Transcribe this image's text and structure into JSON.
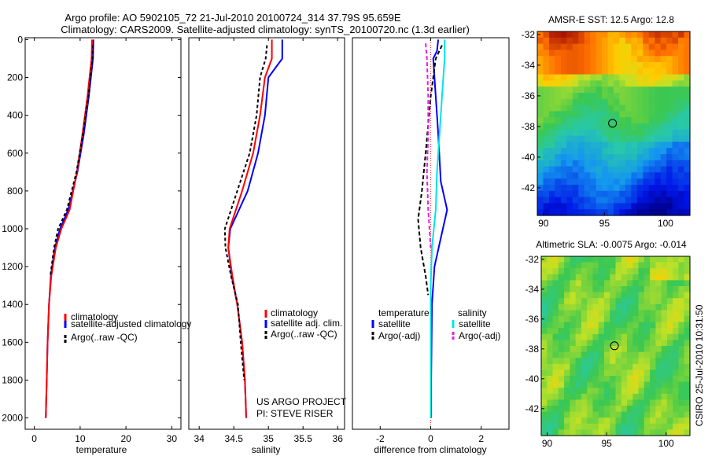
{
  "figure": {
    "title_line1": "Argo profile: AO 5902105_72 21-Jul-2010 20100724_314 37.79S 95.659E",
    "title_line2": "Climatology: CARS2009. Satellite-adjusted climatology: synTS_20100720.nc (1.3d earlier)",
    "project_line1": "US ARGO PROJECT",
    "project_line2": "PI: STEVE RISER",
    "side_label": "CSIRO 25-Jul-2010 10:31:50"
  },
  "colors": {
    "climatology": "#ff0000",
    "satellite": "#0000ff",
    "argo": "#000000",
    "cyan": "#00e5e5",
    "magenta": "#e51ee5"
  },
  "chart_data": [
    {
      "id": "temperature",
      "type": "line",
      "xlabel": "temperature",
      "ylabel": "",
      "xlim": [
        -2,
        32
      ],
      "ylim": [
        2060,
        -10
      ],
      "xticks": [
        0,
        10,
        20,
        30
      ],
      "xtick_labels": [
        "0",
        "10",
        "20",
        "30"
      ],
      "yticks": [
        0,
        200,
        400,
        600,
        800,
        1000,
        1200,
        1400,
        1600,
        1800,
        2000
      ],
      "ytick_labels": [
        "0",
        "200",
        "400",
        "600",
        "800",
        "1000",
        "1200",
        "1400",
        "1600",
        "1800",
        "2000"
      ],
      "legend": [
        "climatology",
        "satellite-adjusted climatology",
        "Argo(..raw -QC)"
      ],
      "series": [
        {
          "name": "satellite-adjusted climatology",
          "color": "#0000ff",
          "width": 2,
          "points": [
            [
              12.9,
              0
            ],
            [
              12.8,
              100
            ],
            [
              11.9,
              300
            ],
            [
              10.8,
              500
            ],
            [
              9.4,
              700
            ],
            [
              7.4,
              900
            ],
            [
              5.6,
              1000
            ],
            [
              4.5,
              1100
            ],
            [
              3.6,
              1250
            ],
            [
              3.2,
              1400
            ],
            [
              2.9,
              1600
            ],
            [
              2.7,
              1800
            ],
            [
              2.5,
              2000
            ]
          ]
        },
        {
          "name": "climatology",
          "color": "#ff0000",
          "width": 2,
          "points": [
            [
              12.6,
              0
            ],
            [
              12.5,
              100
            ],
            [
              11.6,
              300
            ],
            [
              10.5,
              500
            ],
            [
              9.3,
              700
            ],
            [
              7.7,
              900
            ],
            [
              5.9,
              1000
            ],
            [
              4.7,
              1100
            ],
            [
              3.7,
              1250
            ],
            [
              3.2,
              1400
            ],
            [
              2.9,
              1600
            ],
            [
              2.7,
              1800
            ],
            [
              2.5,
              2000
            ]
          ]
        },
        {
          "name": "Argo(..raw -QC)",
          "color": "#000000",
          "width": 2,
          "dash": "4 3",
          "points": [
            [
              12.8,
              30
            ],
            [
              12.7,
              100
            ],
            [
              11.8,
              300
            ],
            [
              10.6,
              500
            ],
            [
              9.2,
              700
            ],
            [
              7.1,
              900
            ],
            [
              5.2,
              1000
            ],
            [
              4.3,
              1100
            ],
            [
              3.5,
              1250
            ]
          ]
        }
      ]
    },
    {
      "id": "salinity",
      "type": "line",
      "xlabel": "salinity",
      "ylabel": "",
      "xlim": [
        33.85,
        36.1
      ],
      "ylim": [
        2060,
        -10
      ],
      "xticks": [
        34,
        34.5,
        35,
        35.5,
        36
      ],
      "xtick_labels": [
        "34",
        "34.5",
        "35",
        "35.5",
        "36"
      ],
      "yticks": [],
      "ytick_labels": [],
      "legend": [
        "climatology",
        "satellite adj. clim.",
        "Argo(..raw -QC)"
      ],
      "series": [
        {
          "name": "satellite adj. clim.",
          "color": "#0000ff",
          "width": 2,
          "points": [
            [
              35.2,
              0
            ],
            [
              35.2,
              100
            ],
            [
              35.0,
              200
            ],
            [
              34.95,
              400
            ],
            [
              34.85,
              600
            ],
            [
              34.7,
              800
            ],
            [
              34.45,
              1000
            ],
            [
              34.42,
              1100
            ],
            [
              34.47,
              1250
            ],
            [
              34.55,
              1400
            ],
            [
              34.62,
              1600
            ],
            [
              34.66,
              1800
            ],
            [
              34.68,
              2000
            ]
          ]
        },
        {
          "name": "climatology",
          "color": "#ff0000",
          "width": 2,
          "points": [
            [
              35.05,
              0
            ],
            [
              35.05,
              100
            ],
            [
              34.95,
              200
            ],
            [
              34.88,
              400
            ],
            [
              34.78,
              600
            ],
            [
              34.62,
              800
            ],
            [
              34.44,
              1000
            ],
            [
              34.42,
              1100
            ],
            [
              34.48,
              1250
            ],
            [
              34.55,
              1400
            ],
            [
              34.62,
              1600
            ],
            [
              34.66,
              1800
            ],
            [
              34.68,
              2000
            ]
          ]
        },
        {
          "name": "Argo(..raw -QC)",
          "color": "#000000",
          "width": 2,
          "dash": "4 3",
          "points": [
            [
              34.98,
              30
            ],
            [
              34.96,
              100
            ],
            [
              34.88,
              200
            ],
            [
              34.83,
              400
            ],
            [
              34.73,
              600
            ],
            [
              34.55,
              800
            ],
            [
              34.37,
              1000
            ],
            [
              34.38,
              1100
            ],
            [
              34.46,
              1250
            ],
            [
              34.56,
              1400
            ],
            [
              34.6,
              1600
            ],
            [
              34.65,
              1800
            ]
          ]
        }
      ]
    },
    {
      "id": "difference",
      "type": "line",
      "xlabel": "difference from climatology",
      "ylabel": "",
      "xlim": [
        -3.1,
        3.1
      ],
      "ylim": [
        2060,
        -10
      ],
      "xticks": [
        -2,
        0,
        2
      ],
      "xtick_labels": [
        "-2",
        "0",
        "2"
      ],
      "yticks": [],
      "ytick_labels": [],
      "legend_headers": [
        "temperature",
        "salinity"
      ],
      "legend": [
        "satellite",
        "Argo(-adj)",
        "satellite",
        "Argo(-adj)"
      ],
      "series": [
        {
          "name": "temperature satellite",
          "color": "#0000ff",
          "width": 2,
          "points": [
            [
              0.3,
              0
            ],
            [
              0.25,
              60
            ],
            [
              0.1,
              100
            ],
            [
              0.2,
              300
            ],
            [
              0.3,
              500
            ],
            [
              0.4,
              750
            ],
            [
              0.65,
              900
            ],
            [
              0.4,
              1050
            ],
            [
              0.15,
              1200
            ],
            [
              0.05,
              1400
            ],
            [
              0.02,
              1800
            ],
            [
              0.02,
              2000
            ]
          ]
        },
        {
          "name": "salinity satellite",
          "color": "#00e5e5",
          "width": 2,
          "points": [
            [
              0.55,
              0
            ],
            [
              0.55,
              100
            ],
            [
              0.45,
              300
            ],
            [
              0.35,
              500
            ],
            [
              0.25,
              700
            ],
            [
              0.2,
              900
            ],
            [
              0.05,
              1100
            ],
            [
              0.0,
              1300
            ],
            [
              0.0,
              2000
            ]
          ]
        },
        {
          "name": "temperature Argo(-adj)",
          "color": "#000000",
          "width": 2,
          "dash": "5 3",
          "points": [
            [
              0.45,
              30
            ],
            [
              0.2,
              100
            ],
            [
              0.0,
              300
            ],
            [
              -0.2,
              600
            ],
            [
              -0.35,
              800
            ],
            [
              -0.5,
              950
            ],
            [
              -0.4,
              1100
            ],
            [
              -0.2,
              1250
            ],
            [
              -0.1,
              1350
            ]
          ]
        },
        {
          "name": "salinity Argo(-adj)",
          "color": "#e51ee5",
          "width": 2,
          "dash": "5 3",
          "points": [
            [
              -0.2,
              20
            ],
            [
              -0.15,
              100
            ],
            [
              -0.1,
              300
            ],
            [
              -0.1,
              500
            ],
            [
              -0.15,
              700
            ],
            [
              -0.1,
              900
            ],
            [
              0.0,
              1100
            ]
          ]
        }
      ]
    },
    {
      "id": "sst_map",
      "type": "heatmap",
      "title": "AMSR-E SST: 12.5 Argo: 12.8",
      "xlim": [
        89.5,
        102
      ],
      "ylim": [
        -43.8,
        -31.8
      ],
      "xticks": [
        90,
        95,
        100
      ],
      "xtick_labels": [
        "90",
        "95",
        "100"
      ],
      "yticks": [
        -32,
        -34,
        -36,
        -38,
        -40,
        -42
      ],
      "ytick_labels": [
        "-32",
        "-34",
        "-36",
        "-38",
        "-40",
        "-42"
      ],
      "marker": [
        95.66,
        -37.79
      ]
    },
    {
      "id": "sla_map",
      "type": "heatmap",
      "title": "Altimetric SLA: -0.0075 Argo: -0.014",
      "xlim": [
        89.5,
        102
      ],
      "ylim": [
        -43.8,
        -31.8
      ],
      "xticks": [
        90,
        95,
        100
      ],
      "xtick_labels": [
        "90",
        "95",
        "100"
      ],
      "yticks": [
        -32,
        -34,
        -36,
        -38,
        -40,
        -42
      ],
      "ytick_labels": [
        "-32",
        "-34",
        "-36",
        "-38",
        "-40",
        "-42"
      ],
      "marker": [
        95.66,
        -37.79
      ]
    }
  ]
}
